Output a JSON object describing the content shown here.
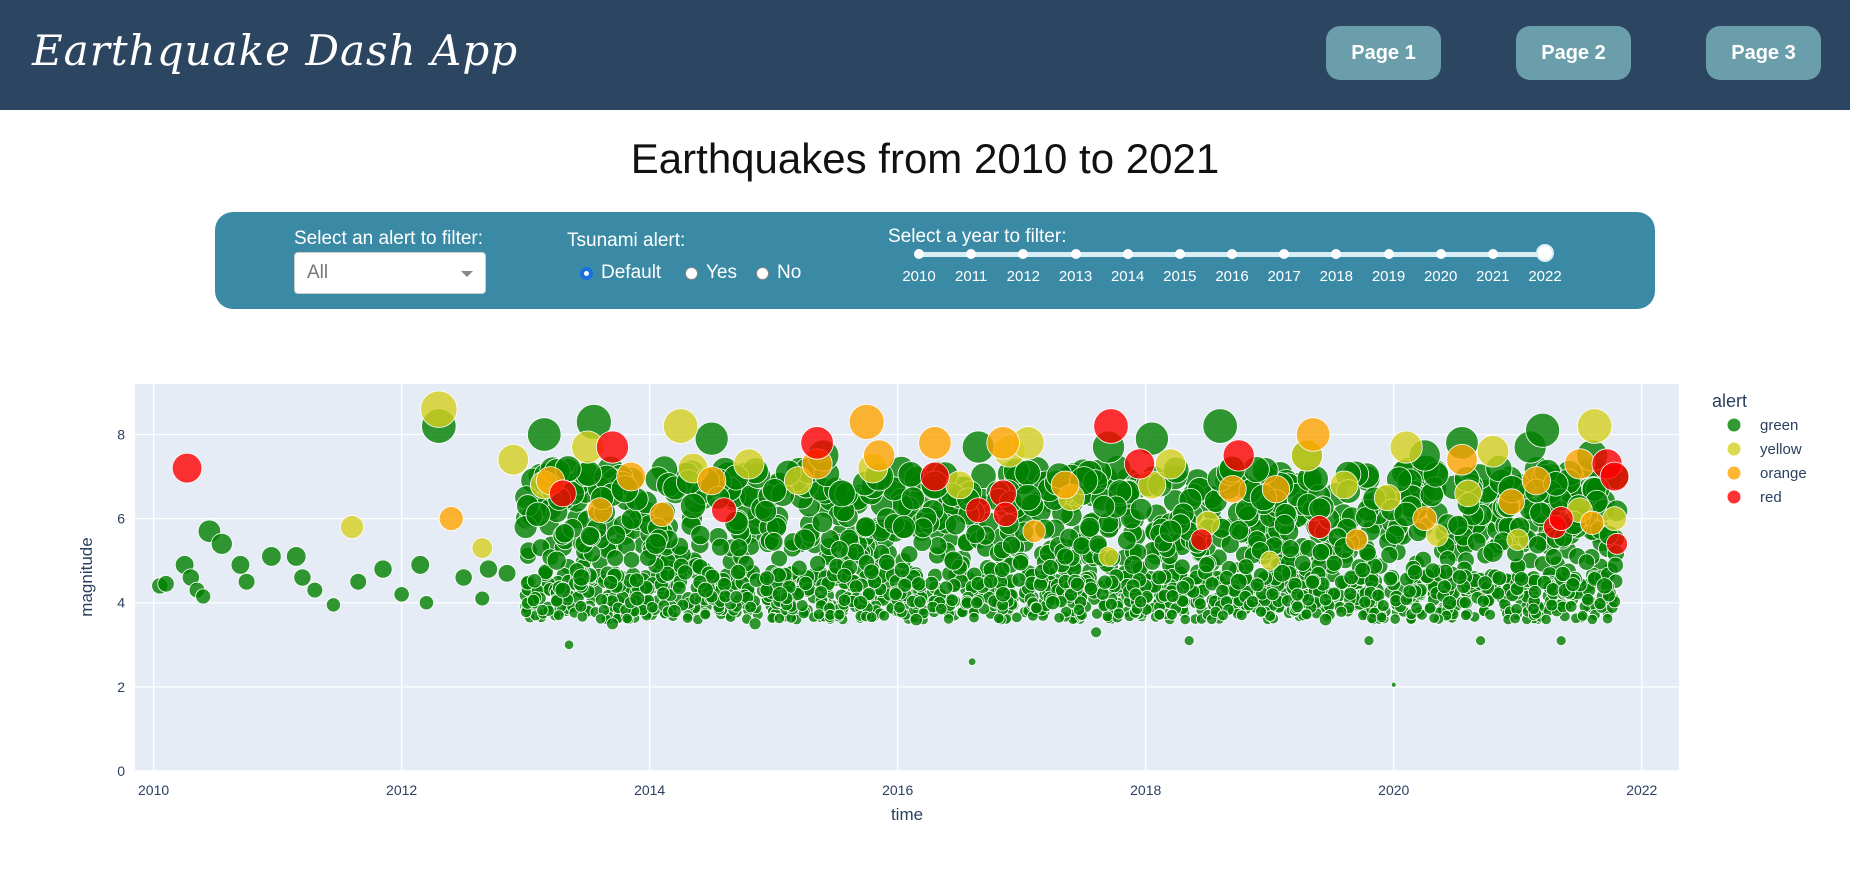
{
  "navbar": {
    "brand": "Earthquake Dash App",
    "pages": [
      "Page 1",
      "Page 2",
      "Page 3"
    ]
  },
  "page_title": "Earthquakes from 2010 to 2021",
  "filters": {
    "alert_label": "Select an alert to filter:",
    "alert_selected": "All",
    "tsunami_label": "Tsunami alert:",
    "tsunami_options": [
      "Default",
      "Yes",
      "No"
    ],
    "tsunami_selected": "Default",
    "year_label": "Select a year to filter:",
    "years": [
      "2010",
      "2011",
      "2012",
      "2013",
      "2014",
      "2015",
      "2016",
      "2017",
      "2018",
      "2019",
      "2020",
      "2021",
      "2022"
    ],
    "year_selected": "2022"
  },
  "colors": {
    "navbar": "#2c4560",
    "panel": "#3a8aa6",
    "button": "#6a9eaa",
    "plot_bg": "#e5ecf6",
    "green": "#008000",
    "yellow": "#d4d020",
    "orange": "#ffa500",
    "red": "#ff0000"
  },
  "chart_data": {
    "type": "scatter",
    "title": "",
    "xlabel": "time",
    "ylabel": "magnitude",
    "xlim": [
      2009.85,
      2022.3
    ],
    "ylim": [
      0,
      9.2
    ],
    "xticks": [
      "2010",
      "2012",
      "2014",
      "2016",
      "2018",
      "2020",
      "2022"
    ],
    "yticks": [
      "0",
      "2",
      "4",
      "6",
      "8"
    ],
    "grid": true,
    "legend_title": "alert",
    "legend_position": "top-right",
    "series": [
      {
        "name": "green",
        "color": "#008000",
        "points": [
          [
            2010.05,
            4.4
          ],
          [
            2010.1,
            4.45
          ],
          [
            2010.25,
            4.9
          ],
          [
            2010.3,
            4.6
          ],
          [
            2010.35,
            4.3
          ],
          [
            2010.4,
            4.15
          ],
          [
            2010.45,
            5.7
          ],
          [
            2010.55,
            5.4
          ],
          [
            2010.7,
            4.9
          ],
          [
            2010.75,
            4.5
          ],
          [
            2010.95,
            5.1
          ],
          [
            2011.15,
            5.1
          ],
          [
            2011.2,
            4.6
          ],
          [
            2011.3,
            4.3
          ],
          [
            2011.45,
            3.95
          ],
          [
            2011.65,
            4.5
          ],
          [
            2011.85,
            4.8
          ],
          [
            2012.0,
            4.2
          ],
          [
            2012.15,
            4.9
          ],
          [
            2012.2,
            4.0
          ],
          [
            2012.3,
            8.2
          ],
          [
            2012.5,
            4.6
          ],
          [
            2012.65,
            4.1
          ],
          [
            2012.7,
            4.8
          ],
          [
            2012.85,
            4.7
          ],
          [
            2013.0,
            5.8
          ],
          [
            2013.1,
            6.1
          ],
          [
            2013.15,
            8.0
          ],
          [
            2013.25,
            5.0
          ],
          [
            2013.3,
            4.3
          ],
          [
            2013.35,
            3.0
          ],
          [
            2013.45,
            4.6
          ],
          [
            2013.55,
            8.3
          ],
          [
            2013.7,
            3.5
          ],
          [
            2013.8,
            6.7
          ],
          [
            2013.9,
            4.1
          ],
          [
            2014.05,
            5.4
          ],
          [
            2014.2,
            3.8
          ],
          [
            2014.35,
            6.3
          ],
          [
            2014.45,
            4.3
          ],
          [
            2014.5,
            7.9
          ],
          [
            2014.7,
            5.9
          ],
          [
            2014.85,
            3.5
          ],
          [
            2015.05,
            4.2
          ],
          [
            2015.25,
            5.5
          ],
          [
            2015.4,
            7.5
          ],
          [
            2015.55,
            6.6
          ],
          [
            2015.7,
            4.0
          ],
          [
            2015.85,
            7.0
          ],
          [
            2016.05,
            5.8
          ],
          [
            2016.15,
            3.6
          ],
          [
            2016.3,
            6.8
          ],
          [
            2016.45,
            5.0
          ],
          [
            2016.6,
            2.6
          ],
          [
            2016.65,
            7.7
          ],
          [
            2016.85,
            4.2
          ],
          [
            2017.05,
            6.5
          ],
          [
            2017.25,
            4.0
          ],
          [
            2017.5,
            6.9
          ],
          [
            2017.6,
            3.3
          ],
          [
            2017.7,
            7.7
          ],
          [
            2017.9,
            4.9
          ],
          [
            2018.05,
            7.9
          ],
          [
            2018.2,
            5.7
          ],
          [
            2018.35,
            3.1
          ],
          [
            2018.6,
            8.2
          ],
          [
            2018.75,
            4.5
          ],
          [
            2018.95,
            6.5
          ],
          [
            2019.1,
            4.7
          ],
          [
            2019.3,
            7.5
          ],
          [
            2019.45,
            3.6
          ],
          [
            2019.6,
            5.3
          ],
          [
            2019.8,
            3.1
          ],
          [
            2020.0,
            2.05
          ],
          [
            2020.1,
            6.1
          ],
          [
            2020.25,
            7.5
          ],
          [
            2020.45,
            4.0
          ],
          [
            2020.55,
            7.8
          ],
          [
            2020.7,
            3.1
          ],
          [
            2020.8,
            5.2
          ],
          [
            2020.95,
            6.7
          ],
          [
            2021.1,
            7.7
          ],
          [
            2021.2,
            8.1
          ],
          [
            2021.35,
            3.1
          ],
          [
            2021.45,
            5.9
          ],
          [
            2021.6,
            7.5
          ],
          [
            2021.7,
            4.4
          ]
        ],
        "note_density": "dense band of points magnitude ~3.5-7.5 from 2013 to 2021.8"
      },
      {
        "name": "yellow",
        "color": "#d4d020",
        "points": [
          [
            2011.6,
            5.8
          ],
          [
            2012.3,
            8.6
          ],
          [
            2012.65,
            5.3
          ],
          [
            2012.9,
            7.4
          ],
          [
            2013.15,
            6.8
          ],
          [
            2013.5,
            7.7
          ],
          [
            2014.25,
            8.2
          ],
          [
            2014.35,
            7.2
          ],
          [
            2014.8,
            7.3
          ],
          [
            2015.2,
            6.9
          ],
          [
            2015.8,
            7.2
          ],
          [
            2016.5,
            6.8
          ],
          [
            2016.9,
            7.6
          ],
          [
            2017.05,
            7.8
          ],
          [
            2017.4,
            6.5
          ],
          [
            2017.7,
            5.1
          ],
          [
            2018.05,
            6.8
          ],
          [
            2018.2,
            7.3
          ],
          [
            2018.5,
            5.9
          ],
          [
            2019.0,
            5.0
          ],
          [
            2019.3,
            7.5
          ],
          [
            2019.6,
            6.8
          ],
          [
            2019.95,
            6.5
          ],
          [
            2020.1,
            7.7
          ],
          [
            2020.35,
            5.6
          ],
          [
            2020.6,
            6.6
          ],
          [
            2020.8,
            7.6
          ],
          [
            2021.0,
            5.5
          ],
          [
            2021.5,
            6.2
          ],
          [
            2021.62,
            8.2
          ],
          [
            2021.78,
            6.0
          ]
        ]
      },
      {
        "name": "orange",
        "color": "#ffa500",
        "points": [
          [
            2012.4,
            6.0
          ],
          [
            2013.2,
            6.9
          ],
          [
            2013.6,
            6.2
          ],
          [
            2013.85,
            7.0
          ],
          [
            2014.1,
            6.1
          ],
          [
            2014.5,
            6.9
          ],
          [
            2015.35,
            7.3
          ],
          [
            2015.75,
            8.3
          ],
          [
            2015.85,
            7.5
          ],
          [
            2016.3,
            7.8
          ],
          [
            2016.85,
            7.8
          ],
          [
            2017.1,
            5.7
          ],
          [
            2017.35,
            6.8
          ],
          [
            2018.7,
            6.7
          ],
          [
            2019.05,
            6.7
          ],
          [
            2019.35,
            8.0
          ],
          [
            2019.7,
            5.5
          ],
          [
            2020.25,
            6.0
          ],
          [
            2020.55,
            7.4
          ],
          [
            2020.95,
            6.4
          ],
          [
            2021.15,
            6.9
          ],
          [
            2021.5,
            7.3
          ],
          [
            2021.6,
            5.9
          ]
        ]
      },
      {
        "name": "red",
        "color": "#ff0000",
        "points": [
          [
            2010.27,
            7.2
          ],
          [
            2013.3,
            6.6
          ],
          [
            2013.7,
            7.7
          ],
          [
            2014.6,
            6.2
          ],
          [
            2015.35,
            7.8
          ],
          [
            2016.3,
            7.0
          ],
          [
            2016.65,
            6.2
          ],
          [
            2016.85,
            6.6
          ],
          [
            2016.87,
            6.1
          ],
          [
            2017.72,
            8.2
          ],
          [
            2017.95,
            7.3
          ],
          [
            2018.45,
            5.5
          ],
          [
            2018.75,
            7.5
          ],
          [
            2019.4,
            5.8
          ],
          [
            2021.3,
            5.8
          ],
          [
            2021.35,
            6.0
          ],
          [
            2021.72,
            7.3
          ],
          [
            2021.78,
            7.0
          ],
          [
            2021.8,
            5.4
          ]
        ]
      }
    ]
  }
}
